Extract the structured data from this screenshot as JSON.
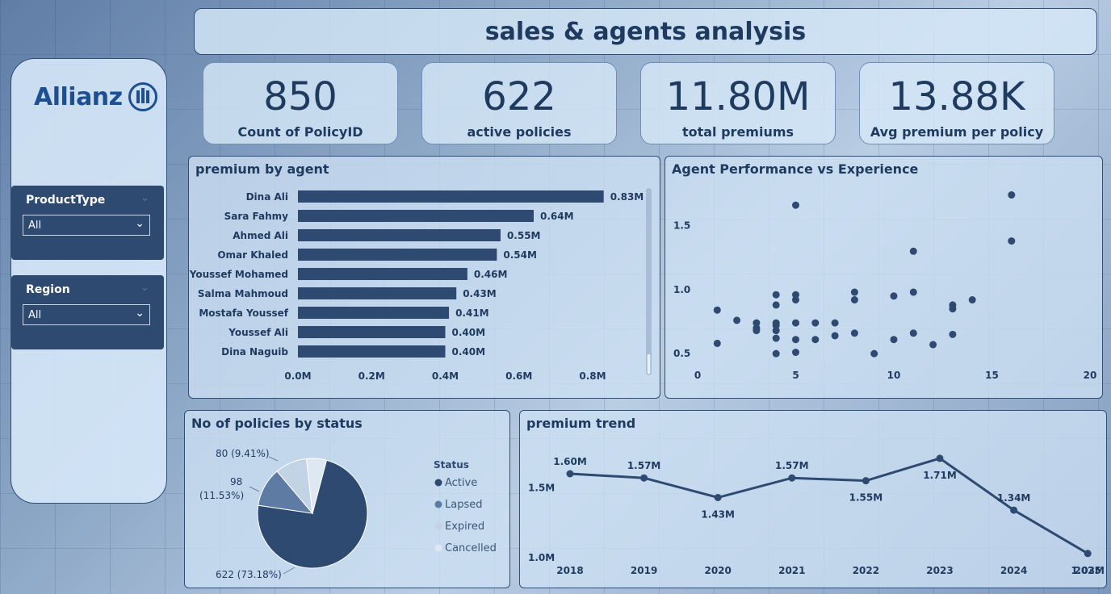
{
  "header": {
    "title": "sales & agents analysis"
  },
  "sidebar": {
    "logo_text": "Allianz",
    "slicers": [
      {
        "label": "ProductType",
        "value": "All"
      },
      {
        "label": "Region",
        "value": "All"
      }
    ]
  },
  "kpis": [
    {
      "value": "850",
      "label": "Count of PolicyID"
    },
    {
      "value": "622",
      "label": "active policies"
    },
    {
      "value": "11.80M",
      "label": "total premiums"
    },
    {
      "value": "13.88K",
      "label": "Avg premium per policy"
    }
  ],
  "colors": {
    "navy": "#2e4a70",
    "panel": "#d0e3f5",
    "accent": "#1d4f91"
  },
  "chart_data": [
    {
      "type": "bar",
      "title": "premium by agent",
      "orientation": "horizontal",
      "categories": [
        "Dina Ali",
        "Sara Fahmy",
        "Ahmed Ali",
        "Omar Khaled",
        "Youssef Mohamed",
        "Salma Mahmoud",
        "Mostafa Youssef",
        "Youssef Ali",
        "Dina Naguib"
      ],
      "values": [
        0.83,
        0.64,
        0.55,
        0.54,
        0.46,
        0.43,
        0.41,
        0.4,
        0.4
      ],
      "data_labels": [
        "0.83M",
        "0.64M",
        "0.55M",
        "0.54M",
        "0.46M",
        "0.43M",
        "0.41M",
        "0.40M",
        "0.40M"
      ],
      "xticks": [
        "0.0M",
        "0.2M",
        "0.4M",
        "0.6M",
        "0.8M"
      ],
      "xlim": [
        0,
        0.9
      ]
    },
    {
      "type": "scatter",
      "title": "Agent Performance vs Experience",
      "xlim": [
        0,
        20
      ],
      "ylim": [
        0.4,
        1.8
      ],
      "xticks": [
        "0",
        "5",
        "10",
        "15",
        "20"
      ],
      "yticks": [
        "0.5",
        "1.0",
        "1.5"
      ],
      "points": [
        [
          1,
          0.58
        ],
        [
          1,
          0.84
        ],
        [
          2,
          0.76
        ],
        [
          3,
          0.74
        ],
        [
          3,
          0.7
        ],
        [
          3,
          0.68
        ],
        [
          4,
          0.96
        ],
        [
          4,
          0.88
        ],
        [
          4,
          0.74
        ],
        [
          4,
          0.72
        ],
        [
          4,
          0.68
        ],
        [
          4,
          0.62
        ],
        [
          4,
          0.5
        ],
        [
          5,
          1.66
        ],
        [
          5,
          0.96
        ],
        [
          5,
          0.92
        ],
        [
          5,
          0.74
        ],
        [
          5,
          0.61
        ],
        [
          5,
          0.51
        ],
        [
          6,
          0.74
        ],
        [
          6,
          0.61
        ],
        [
          7,
          0.74
        ],
        [
          7,
          0.64
        ],
        [
          8,
          0.98
        ],
        [
          8,
          0.92
        ],
        [
          8,
          0.66
        ],
        [
          9,
          0.5
        ],
        [
          10,
          0.95
        ],
        [
          10,
          0.61
        ],
        [
          11,
          1.3
        ],
        [
          11,
          0.98
        ],
        [
          11,
          0.66
        ],
        [
          12,
          0.57
        ],
        [
          13,
          0.88
        ],
        [
          13,
          0.85
        ],
        [
          13,
          0.65
        ],
        [
          14,
          0.92
        ],
        [
          16,
          1.74
        ],
        [
          16,
          1.38
        ]
      ]
    },
    {
      "type": "pie",
      "title": "No of policies by status",
      "legend_title": "Status",
      "legend_position": "right",
      "slices": [
        {
          "name": "Active",
          "value": 622,
          "label": "622 (73.18%)",
          "color": "#2e4a70"
        },
        {
          "name": "Lapsed",
          "value": 98,
          "label": "98 (11.53%)",
          "color": "#5d7ba3"
        },
        {
          "name": "Expired",
          "value": 80,
          "label": "80 (9.41%)",
          "color": "#c2d3e6"
        },
        {
          "name": "Cancelled",
          "value": 50,
          "label": "",
          "color": "#dde8f3"
        }
      ]
    },
    {
      "type": "line",
      "title": "premium trend",
      "x": [
        "2018",
        "2019",
        "2020",
        "2021",
        "2022",
        "2023",
        "2024",
        "2025"
      ],
      "values": [
        1.6,
        1.57,
        1.43,
        1.57,
        1.55,
        1.71,
        1.34,
        1.03
      ],
      "data_labels": [
        "1.60M",
        "1.57M",
        "1.43M",
        "1.57M",
        "1.55M",
        "1.71M",
        "1.34M",
        "1.03M"
      ],
      "yticks": [
        "1.5M",
        "1.0M"
      ],
      "ylim": [
        1.0,
        1.75
      ]
    }
  ]
}
